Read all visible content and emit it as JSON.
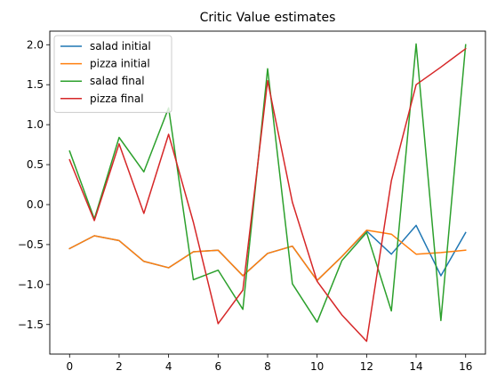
{
  "chart_data": {
    "type": "line",
    "title": "Critic Value estimates",
    "xlabel": "",
    "ylabel": "",
    "x": [
      0,
      1,
      2,
      3,
      4,
      5,
      6,
      7,
      8,
      9,
      10,
      11,
      12,
      13,
      14,
      15,
      16
    ],
    "xlim": [
      -0.8,
      16.8
    ],
    "ylim": [
      -1.87,
      2.17
    ],
    "xticks": [
      0,
      2,
      4,
      6,
      8,
      10,
      12,
      14,
      16
    ],
    "xtick_labels": [
      "0",
      "2",
      "4",
      "6",
      "8",
      "10",
      "12",
      "14",
      "16"
    ],
    "yticks": [
      -1.5,
      -1.0,
      -0.5,
      0.0,
      0.5,
      1.0,
      1.5,
      2.0
    ],
    "ytick_labels": [
      "−1.5",
      "−1.0",
      "−0.5",
      "0.0",
      "0.5",
      "1.0",
      "1.5",
      "2.0"
    ],
    "grid": false,
    "legend_position": "upper left",
    "series": [
      {
        "name": "salad initial",
        "color": "#1f77b4",
        "values": [
          -0.55,
          -0.39,
          -0.45,
          -0.71,
          -0.79,
          -0.59,
          -0.57,
          -0.89,
          -0.61,
          -0.52,
          -0.95,
          -0.65,
          -0.33,
          -0.62,
          -0.26,
          -0.89,
          -0.35
        ]
      },
      {
        "name": "pizza initial",
        "color": "#ff7f0e",
        "values": [
          -0.55,
          -0.39,
          -0.45,
          -0.71,
          -0.79,
          -0.59,
          -0.57,
          -0.89,
          -0.61,
          -0.52,
          -0.95,
          -0.65,
          -0.32,
          -0.37,
          -0.62,
          -0.6,
          -0.57
        ]
      },
      {
        "name": "salad final",
        "color": "#2ca02c",
        "values": [
          0.67,
          -0.18,
          0.84,
          0.41,
          1.21,
          -0.94,
          -0.82,
          -1.31,
          1.7,
          -0.99,
          -1.47,
          -0.7,
          -0.35,
          -1.33,
          2.01,
          -1.45,
          2.0
        ]
      },
      {
        "name": "pizza final",
        "color": "#d62728",
        "values": [
          0.56,
          -0.2,
          0.76,
          -0.11,
          0.88,
          -0.22,
          -1.49,
          -1.07,
          1.55,
          0.03,
          -0.96,
          -1.38,
          -1.71,
          0.3,
          1.5,
          1.72,
          1.95
        ]
      }
    ]
  }
}
